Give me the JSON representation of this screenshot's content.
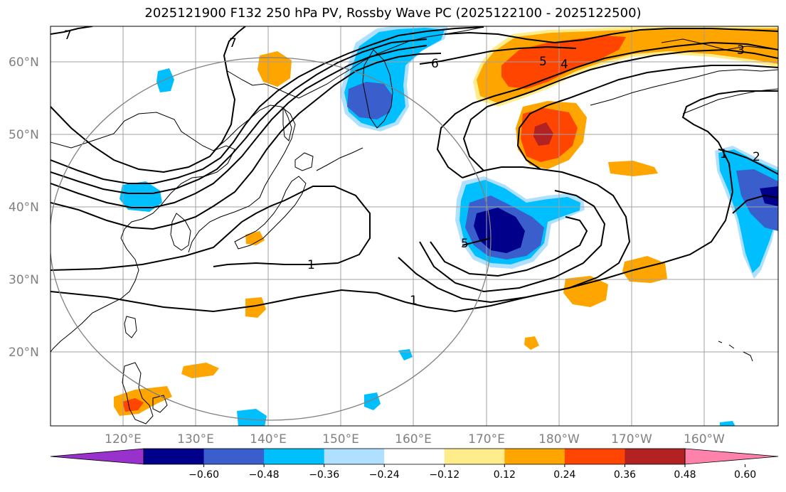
{
  "title": "2025121900 F132 250 hPa PV, Rossby Wave PC (2025122100 - 2025122500)",
  "lat_labels": [
    "60°N",
    "50°N",
    "40°N",
    "30°N",
    "20°N"
  ],
  "lon_labels": [
    "120°E",
    "130°E",
    "140°E",
    "150°E",
    "160°E",
    "170°E",
    "180°W",
    "170°W",
    "160°W"
  ],
  "contour_labels": [
    "7",
    "7",
    "6",
    "5",
    "4",
    "3",
    "1",
    "1",
    "5",
    "1",
    "2"
  ],
  "colorbar": {
    "tick_labels": [
      "−0.60",
      "−0.48",
      "−0.36",
      "−0.24",
      "−0.12",
      "0.12",
      "0.24",
      "0.36",
      "0.48",
      "0.60"
    ],
    "colors": [
      "#9932cc",
      "#00008b",
      "#3a5fcd",
      "#00bfff",
      "#b0e0ff",
      "#ffffff",
      "#ffec8b",
      "#ffa500",
      "#ff4500",
      "#b22222",
      "#ff82ab"
    ]
  },
  "colors": {
    "coastline": "#000000",
    "grid": "#a0a0a0",
    "circle": "#808080",
    "contour": "#000000"
  }
}
